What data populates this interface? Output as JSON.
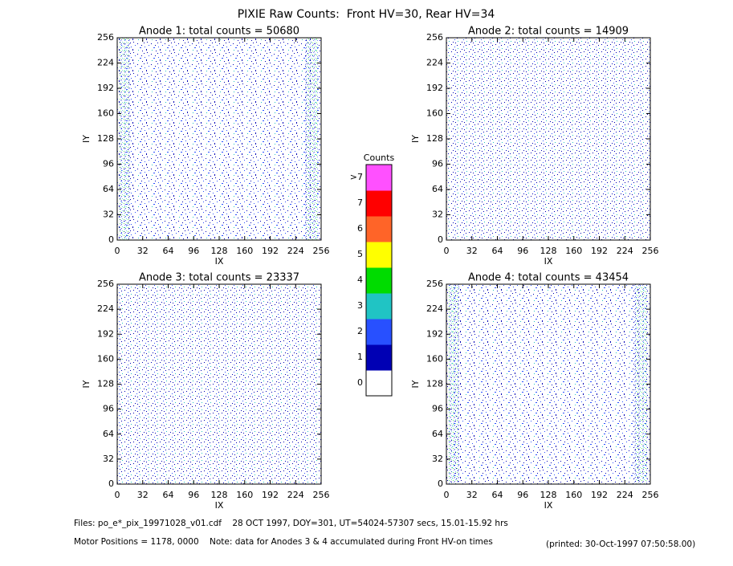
{
  "title": "PIXIE Raw Counts:  Front HV=30, Rear HV=34",
  "chart_data": [
    {
      "type": "heatmap",
      "title": "Anode 1: total counts = 50680",
      "xlabel": "IX",
      "ylabel": "IY",
      "xlim": [
        0,
        256
      ],
      "ylim": [
        0,
        256
      ],
      "xticks": [
        0,
        32,
        64,
        96,
        128,
        160,
        192,
        224,
        256
      ],
      "yticks": [
        0,
        32,
        64,
        96,
        128,
        160,
        192,
        224,
        256
      ]
    },
    {
      "type": "heatmap",
      "title": "Anode 2: total counts = 14909",
      "xlabel": "IX",
      "ylabel": "IY",
      "xlim": [
        0,
        256
      ],
      "ylim": [
        0,
        256
      ],
      "xticks": [
        0,
        32,
        64,
        96,
        128,
        160,
        192,
        224,
        256
      ],
      "yticks": [
        0,
        32,
        64,
        96,
        128,
        160,
        192,
        224,
        256
      ]
    },
    {
      "type": "heatmap",
      "title": "Anode 3: total counts = 23337",
      "xlabel": "IX",
      "ylabel": "IY",
      "xlim": [
        0,
        256
      ],
      "ylim": [
        0,
        256
      ],
      "xticks": [
        0,
        32,
        64,
        96,
        128,
        160,
        192,
        224,
        256
      ],
      "yticks": [
        0,
        32,
        64,
        96,
        128,
        160,
        192,
        224,
        256
      ]
    },
    {
      "type": "heatmap",
      "title": "Anode 4: total counts = 43454",
      "xlabel": "IX",
      "ylabel": "IY",
      "xlim": [
        0,
        256
      ],
      "ylim": [
        0,
        256
      ],
      "xticks": [
        0,
        32,
        64,
        96,
        128,
        160,
        192,
        224,
        256
      ],
      "yticks": [
        0,
        32,
        64,
        96,
        128,
        160,
        192,
        224,
        256
      ]
    }
  ],
  "colorbar": {
    "title": "Counts",
    "labels": [
      "0",
      "1",
      "2",
      "3",
      "4",
      "5",
      "6",
      "7",
      ">7"
    ],
    "colors": [
      "#ffffff",
      "#0000b4",
      "#2850ff",
      "#20c4c4",
      "#00dc00",
      "#ffff00",
      "#ff6428",
      "#ff0000",
      "#ff50ff"
    ]
  },
  "footer": {
    "files": "Files: po_e*_pix_19971028_v01.cdf    28 OCT 1997, DOY=301, UT=54024-57307 secs, 15.01-15.92 hrs",
    "motor": "Motor Positions = 1178, 0000    Note: data for Anodes 3 & 4 accumulated during Front HV-on times",
    "printed": "(printed: 30-Oct-1997 07:50:58.00)"
  }
}
